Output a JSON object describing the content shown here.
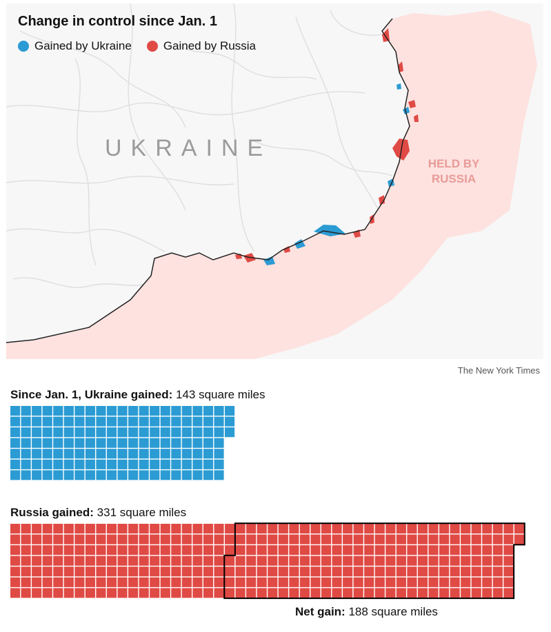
{
  "map": {
    "title": "Change in control since Jan. 1",
    "legend": [
      {
        "label": "Gained by Ukraine",
        "color": "#2b9bd3"
      },
      {
        "label": "Gained by Russia",
        "color": "#e04a45"
      }
    ],
    "country_label": "UKRAINE",
    "held_label_line1": "HELD BY",
    "held_label_line2": "RUSSIA",
    "colors": {
      "held_by_russia": "#fde2e0",
      "land": "#f7f7f7",
      "roads": "#dedede",
      "front_line": "#222222"
    }
  },
  "credit": "The New York Times",
  "ukraine_gain": {
    "label_bold": "Since Jan. 1, Ukraine gained:",
    "label_value": "143 square miles",
    "square_miles": 143,
    "color": "#2b9bd3"
  },
  "russia_gain": {
    "label_bold": "Russia gained:",
    "label_value": "331 square miles",
    "square_miles": 331,
    "color": "#e04a45"
  },
  "net_gain": {
    "label_bold": "Net gain:",
    "label_value": "188 square miles",
    "square_miles": 188
  }
}
